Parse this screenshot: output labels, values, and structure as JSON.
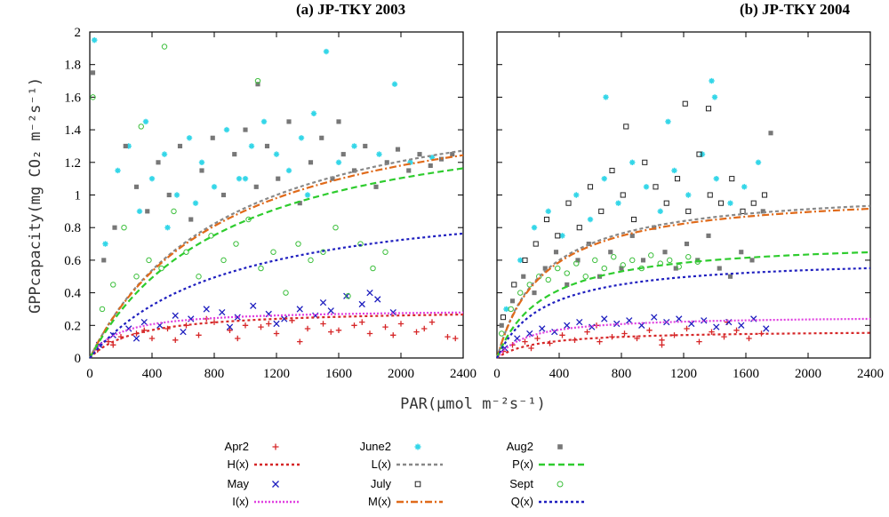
{
  "chart_data": [
    {
      "type": "scatter",
      "title": "(a) JP-TKY 2003",
      "xlabel": "PAR(μmol m⁻²s⁻¹)",
      "ylabel": "GPPcapacity(mg CO₂ m⁻²s⁻¹)",
      "xlim": [
        0,
        2400
      ],
      "ylim": [
        0,
        2
      ],
      "xticks": [
        "0",
        "400",
        "800",
        "1200",
        "1600",
        "2000",
        "2400"
      ],
      "yticks": [
        "0",
        "0.2",
        "0.4",
        "0.6",
        "0.8",
        "1",
        "1.2",
        "1.4",
        "1.6",
        "1.8",
        "2"
      ],
      "series": [
        {
          "name": "Apr2",
          "kind": "points",
          "x": [
            50,
            120,
            200,
            300,
            400,
            500,
            620,
            700,
            800,
            900,
            1000,
            1100,
            1200,
            1300,
            1400,
            1500,
            1600,
            1700,
            1800,
            1900,
            2000,
            2100,
            2200,
            2300,
            150,
            350,
            550,
            750,
            950,
            1150,
            1350,
            1550,
            1750,
            1950,
            2150,
            2350
          ],
          "y": [
            0.05,
            0.1,
            0.13,
            0.15,
            0.12,
            0.18,
            0.2,
            0.14,
            0.22,
            0.17,
            0.2,
            0.19,
            0.15,
            0.23,
            0.18,
            0.21,
            0.17,
            0.2,
            0.15,
            0.19,
            0.21,
            0.16,
            0.22,
            0.13,
            0.08,
            0.17,
            0.11,
            0.24,
            0.12,
            0.21,
            0.1,
            0.16,
            0.22,
            0.14,
            0.18,
            0.12
          ]
        },
        {
          "name": "May",
          "kind": "points",
          "x": [
            60,
            150,
            250,
            350,
            450,
            550,
            650,
            750,
            850,
            950,
            1050,
            1150,
            1250,
            1350,
            1450,
            1550,
            1650,
            1750,
            1850,
            1950,
            300,
            600,
            900,
            1200,
            1500,
            1800
          ],
          "y": [
            0.08,
            0.14,
            0.18,
            0.22,
            0.2,
            0.26,
            0.24,
            0.3,
            0.28,
            0.25,
            0.32,
            0.27,
            0.24,
            0.3,
            0.26,
            0.29,
            0.38,
            0.33,
            0.36,
            0.28,
            0.12,
            0.16,
            0.19,
            0.21,
            0.34,
            0.4
          ]
        },
        {
          "name": "June2",
          "kind": "points",
          "x": [
            30,
            100,
            180,
            250,
            320,
            400,
            480,
            560,
            640,
            720,
            800,
            880,
            960,
            1040,
            1120,
            1200,
            1280,
            1360,
            1440,
            1520,
            1600,
            1700,
            1860,
            1960,
            2060,
            2200,
            360,
            500,
            680,
            1000,
            1400
          ],
          "y": [
            1.95,
            0.7,
            1.15,
            1.3,
            0.9,
            1.1,
            1.25,
            1.0,
            1.35,
            1.2,
            1.05,
            1.4,
            1.1,
            1.3,
            1.45,
            1.25,
            1.15,
            1.35,
            1.5,
            1.88,
            1.2,
            1.3,
            1.25,
            1.68,
            1.2,
            1.23,
            1.45,
            0.8,
            0.95,
            1.1,
            1.0
          ]
        },
        {
          "name": "July",
          "kind": "points",
          "x": [],
          "y": []
        },
        {
          "name": "Aug2",
          "kind": "points",
          "x": [
            20,
            90,
            160,
            230,
            300,
            370,
            440,
            510,
            580,
            650,
            720,
            790,
            860,
            930,
            1000,
            1070,
            1140,
            1210,
            1280,
            1350,
            1420,
            1490,
            1560,
            1630,
            1700,
            1770,
            1840,
            1910,
            1980,
            2050,
            2120,
            2190,
            2260,
            2330,
            1080,
            1600
          ],
          "y": [
            1.75,
            0.6,
            0.8,
            1.3,
            1.05,
            0.9,
            1.2,
            1.0,
            1.3,
            0.85,
            1.15,
            1.35,
            1.0,
            1.25,
            1.4,
            1.05,
            1.3,
            1.1,
            1.45,
            0.95,
            1.2,
            1.35,
            1.1,
            1.25,
            1.15,
            1.3,
            1.05,
            1.2,
            1.28,
            1.15,
            1.25,
            1.18,
            1.22,
            1.25,
            1.68,
            1.45
          ]
        },
        {
          "name": "Sept",
          "kind": "points",
          "x": [
            20,
            80,
            150,
            220,
            300,
            380,
            460,
            540,
            620,
            700,
            780,
            860,
            940,
            1020,
            1100,
            1180,
            1260,
            1340,
            1420,
            1500,
            1580,
            1660,
            1740,
            1820,
            1900,
            480,
            330,
            1080
          ],
          "y": [
            1.6,
            0.3,
            0.45,
            0.8,
            0.5,
            0.6,
            0.55,
            0.9,
            0.65,
            0.5,
            0.75,
            0.6,
            0.7,
            0.85,
            0.55,
            0.65,
            0.4,
            0.7,
            0.6,
            0.65,
            0.8,
            0.38,
            0.7,
            0.55,
            0.65,
            1.91,
            1.42,
            1.7
          ]
        },
        {
          "name": "H(x)",
          "kind": "curve",
          "amax": 0.3,
          "k": 300,
          "ys": [],
          "xmax": 2400
        },
        {
          "name": "I(x)",
          "kind": "curve",
          "amax": 0.3,
          "k": 180,
          "ys": [],
          "xmax": 2400
        },
        {
          "name": "L(x)",
          "kind": "curve",
          "amax": 1.75,
          "k": 900,
          "xmax": 2400
        },
        {
          "name": "M(x)",
          "kind": "curve",
          "amax": 1.7,
          "k": 880,
          "xmax": 2400
        },
        {
          "name": "P(x)",
          "kind": "curve",
          "amax": 1.6,
          "k": 900,
          "xmax": 2400
        },
        {
          "name": "Q(x)",
          "kind": "curve",
          "amax": 1.05,
          "k": 900,
          "xmax": 2400
        }
      ]
    },
    {
      "type": "scatter",
      "title": "(b) JP-TKY 2004",
      "xlabel": "PAR(μmol m⁻²s⁻¹)",
      "ylabel": "GPPcapacity(mg CO₂ m⁻²s⁻¹)",
      "xlim": [
        0,
        2400
      ],
      "ylim": [
        0,
        2
      ],
      "xticks": [
        "0",
        "400",
        "800",
        "1200",
        "1600",
        "2000",
        "2400"
      ],
      "yticks": [],
      "series": [
        {
          "name": "Apr2",
          "kind": "points",
          "x": [
            40,
            100,
            180,
            260,
            340,
            420,
            500,
            580,
            660,
            740,
            820,
            900,
            980,
            1060,
            1140,
            1220,
            1300,
            1380,
            1460,
            1540,
            1620,
            1700,
            220,
            640,
            1060,
            1480
          ],
          "y": [
            0.04,
            0.08,
            0.1,
            0.12,
            0.09,
            0.14,
            0.11,
            0.16,
            0.1,
            0.13,
            0.15,
            0.12,
            0.17,
            0.11,
            0.14,
            0.18,
            0.1,
            0.16,
            0.13,
            0.17,
            0.12,
            0.15,
            0.06,
            0.2,
            0.08,
            0.22
          ]
        },
        {
          "name": "May",
          "kind": "points",
          "x": [
            50,
            130,
            210,
            290,
            370,
            450,
            530,
            610,
            690,
            770,
            850,
            930,
            1010,
            1090,
            1170,
            1250,
            1330,
            1410,
            1490,
            1570,
            1650,
            1730
          ],
          "y": [
            0.06,
            0.12,
            0.15,
            0.18,
            0.16,
            0.2,
            0.22,
            0.19,
            0.24,
            0.21,
            0.23,
            0.2,
            0.25,
            0.22,
            0.24,
            0.21,
            0.23,
            0.19,
            0.22,
            0.2,
            0.24,
            0.18
          ]
        },
        {
          "name": "June2",
          "kind": "points",
          "x": [
            60,
            150,
            240,
            330,
            420,
            510,
            600,
            690,
            780,
            870,
            960,
            1050,
            1140,
            1230,
            1320,
            1410,
            1500,
            1590,
            1680,
            1380,
            1400,
            700,
            1100
          ],
          "y": [
            0.3,
            0.6,
            0.8,
            0.9,
            0.75,
            1.0,
            0.85,
            1.1,
            0.95,
            1.2,
            1.05,
            0.9,
            1.15,
            1.0,
            1.25,
            1.1,
            0.95,
            1.05,
            1.2,
            1.7,
            1.6,
            1.6,
            1.45
          ]
        },
        {
          "name": "July",
          "kind": "points",
          "x": [
            40,
            110,
            180,
            250,
            320,
            390,
            460,
            530,
            600,
            670,
            740,
            810,
            880,
            950,
            1020,
            1090,
            1160,
            1230,
            1300,
            1370,
            1440,
            1510,
            1580,
            1650,
            1720,
            830,
            1210,
            1360
          ],
          "y": [
            0.25,
            0.45,
            0.6,
            0.7,
            0.85,
            0.75,
            0.95,
            0.8,
            1.05,
            0.9,
            1.15,
            1.0,
            0.85,
            1.2,
            1.05,
            0.95,
            1.1,
            0.9,
            1.25,
            1.0,
            0.95,
            1.1,
            0.9,
            0.95,
            1.0,
            1.42,
            1.56,
            1.53
          ]
        },
        {
          "name": "Aug2",
          "kind": "points",
          "x": [
            30,
            100,
            170,
            240,
            310,
            380,
            450,
            520,
            590,
            660,
            730,
            800,
            870,
            940,
            1010,
            1080,
            1150,
            1220,
            1290,
            1360,
            1430,
            1500,
            1570,
            1640,
            1710,
            1760
          ],
          "y": [
            0.2,
            0.35,
            0.5,
            0.4,
            0.55,
            0.65,
            0.45,
            0.6,
            0.7,
            0.5,
            0.65,
            0.55,
            0.75,
            0.6,
            0.8,
            0.65,
            0.55,
            0.7,
            0.6,
            0.75,
            0.55,
            0.5,
            0.65,
            0.6,
            0.9,
            1.38
          ]
        },
        {
          "name": "Sept",
          "kind": "points",
          "x": [
            30,
            90,
            150,
            210,
            270,
            330,
            390,
            450,
            510,
            570,
            630,
            690,
            750,
            810,
            870,
            930,
            990,
            1050,
            1110,
            1170,
            1230,
            1290
          ],
          "y": [
            0.15,
            0.3,
            0.4,
            0.45,
            0.5,
            0.48,
            0.55,
            0.52,
            0.58,
            0.5,
            0.6,
            0.55,
            0.62,
            0.57,
            0.6,
            0.55,
            0.63,
            0.58,
            0.6,
            0.56,
            0.62,
            0.59
          ]
        },
        {
          "name": "H(x)",
          "kind": "curve",
          "amax": 0.17,
          "k": 250,
          "xmax": 2400
        },
        {
          "name": "I(x)",
          "kind": "curve",
          "amax": 0.26,
          "k": 200,
          "xmax": 2400
        },
        {
          "name": "L(x)",
          "kind": "curve",
          "amax": 1.05,
          "k": 300,
          "xmax": 2400
        },
        {
          "name": "M(x)",
          "kind": "curve",
          "amax": 1.03,
          "k": 300,
          "xmax": 2400
        },
        {
          "name": "P(x)",
          "kind": "curve",
          "amax": 0.73,
          "k": 300,
          "xmax": 2400
        },
        {
          "name": "Q(x)",
          "kind": "curve",
          "amax": 0.62,
          "k": 300,
          "xmax": 2400
        }
      ]
    }
  ],
  "legend": {
    "columns": [
      [
        {
          "name": "Apr2",
          "kind": "point"
        },
        {
          "name": "H(x)",
          "kind": "line"
        },
        {
          "name": "May",
          "kind": "point"
        },
        {
          "name": "I(x)",
          "kind": "line"
        }
      ],
      [
        {
          "name": "June2",
          "kind": "point"
        },
        {
          "name": "L(x)",
          "kind": "line"
        },
        {
          "name": "July",
          "kind": "point"
        },
        {
          "name": "M(x)",
          "kind": "line"
        }
      ],
      [
        {
          "name": "Aug2",
          "kind": "point"
        },
        {
          "name": "P(x)",
          "kind": "line"
        },
        {
          "name": "Sept",
          "kind": "point"
        },
        {
          "name": "Q(x)",
          "kind": "line"
        }
      ]
    ]
  },
  "styles": {
    "Apr2": {
      "color": "#d62728",
      "marker": "plus"
    },
    "May": {
      "color": "#1f1fbf",
      "marker": "cross"
    },
    "June2": {
      "color": "#33d6e8",
      "marker": "star"
    },
    "July": {
      "color": "#222222",
      "marker": "open-square"
    },
    "Aug2": {
      "color": "#777777",
      "marker": "filled-square"
    },
    "Sept": {
      "color": "#3cbf3c",
      "marker": "open-circle"
    },
    "H(x)": {
      "color": "#d62728",
      "dash": "3,3"
    },
    "I(x)": {
      "color": "#e040e0",
      "dash": "2,2"
    },
    "L(x)": {
      "color": "#888888",
      "dash": "4,3"
    },
    "M(x)": {
      "color": "#e06a1a",
      "dash": "8,3,2,3"
    },
    "P(x)": {
      "color": "#2ecc2e",
      "dash": "7,4"
    },
    "Q(x)": {
      "color": "#1f1fbf",
      "dash": "3,3"
    }
  }
}
